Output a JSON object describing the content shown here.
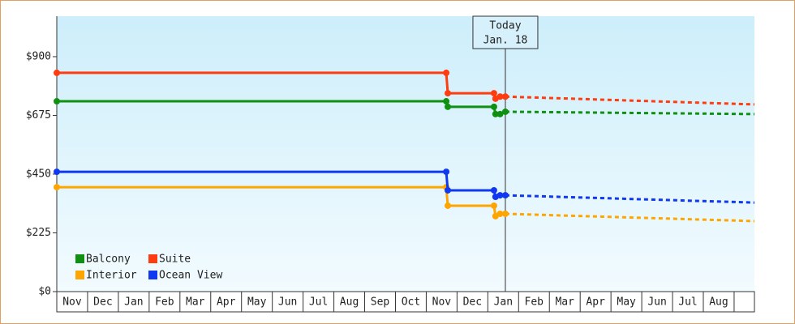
{
  "chart_data": {
    "type": "step-line",
    "categories": [
      "Nov",
      "Dec",
      "Jan",
      "Feb",
      "Mar",
      "Apr",
      "May",
      "Jun",
      "Jul",
      "Aug",
      "Sep",
      "Oct",
      "Nov",
      "Dec",
      "Jan",
      "Feb",
      "Mar",
      "Apr",
      "May",
      "Jun",
      "Jul",
      "Aug"
    ],
    "xlim": [
      0,
      22.66
    ],
    "ylim": [
      0,
      1055
    ],
    "yticks": [
      {
        "value": 0,
        "label": "$0"
      },
      {
        "value": 225,
        "label": "$225"
      },
      {
        "value": 450,
        "label": "$450"
      },
      {
        "value": 675,
        "label": "$675"
      },
      {
        "value": 900,
        "label": "$900"
      }
    ],
    "today": {
      "x": 14.57,
      "label": [
        "Today",
        "Jan. 18"
      ]
    },
    "series": [
      {
        "name": "Balcony",
        "color": "#109010",
        "x": [
          0,
          12.65,
          12.7,
          14.2,
          14.25,
          14.4,
          14.57
        ],
        "values": [
          729,
          729,
          708,
          708,
          680,
          680,
          689
        ],
        "forecast": {
          "x": [
            14.57,
            22.66
          ],
          "values": [
            689,
            680
          ]
        }
      },
      {
        "name": "Suite",
        "color": "#ff3c10",
        "x": [
          0,
          12.65,
          12.7,
          14.2,
          14.25,
          14.4,
          14.57
        ],
        "values": [
          838,
          838,
          760,
          760,
          739,
          747,
          747
        ],
        "forecast": {
          "x": [
            14.57,
            22.66
          ],
          "values": [
            747,
            717
          ]
        }
      },
      {
        "name": "Interior",
        "color": "#ffa500",
        "x": [
          0,
          12.65,
          12.7,
          14.2,
          14.25,
          14.4,
          14.57
        ],
        "values": [
          400,
          400,
          329,
          329,
          289,
          298,
          298
        ],
        "forecast": {
          "x": [
            14.57,
            22.66
          ],
          "values": [
            298,
            270
          ]
        }
      },
      {
        "name": "Ocean View",
        "color": "#1038f0",
        "x": [
          0,
          12.65,
          12.7,
          14.2,
          14.25,
          14.4,
          14.57
        ],
        "values": [
          459,
          459,
          388,
          388,
          363,
          369,
          369
        ],
        "forecast": {
          "x": [
            14.57,
            22.66
          ],
          "values": [
            369,
            341
          ]
        }
      }
    ]
  }
}
